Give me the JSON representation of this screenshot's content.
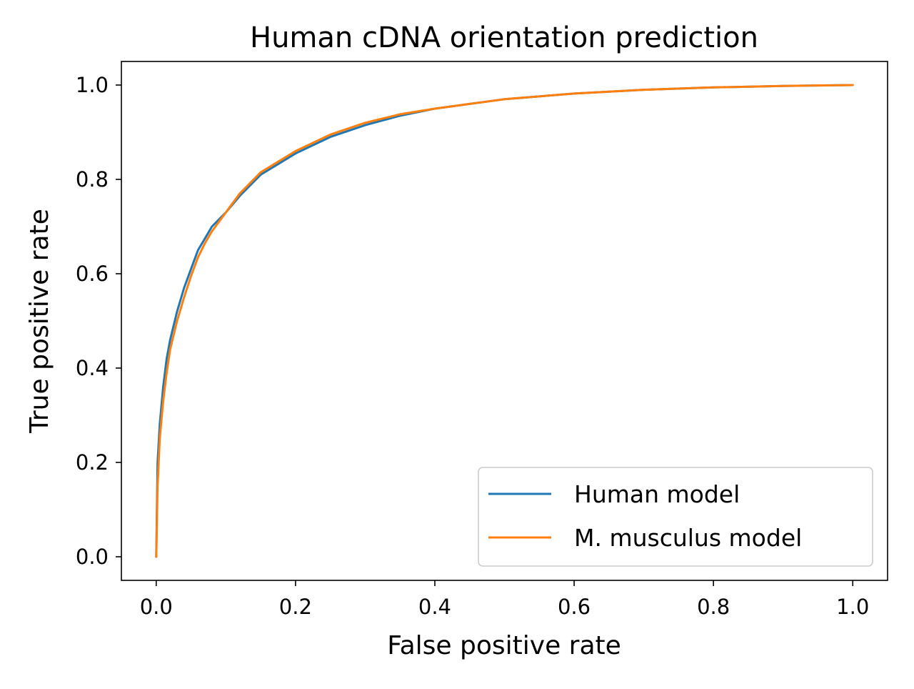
{
  "chart_data": {
    "type": "line",
    "title": "Human cDNA orientation prediction",
    "xlabel": "False positive rate",
    "ylabel": "True positive rate",
    "xlim": [
      -0.05,
      1.05
    ],
    "ylim": [
      -0.05,
      1.05
    ],
    "xticks": [
      "0.0",
      "0.2",
      "0.4",
      "0.6",
      "0.8",
      "1.0"
    ],
    "yticks": [
      "0.0",
      "0.2",
      "0.4",
      "0.6",
      "0.8",
      "1.0"
    ],
    "grid": false,
    "legend_position": "lower-right",
    "series": [
      {
        "name": "Human model",
        "color": "#1f77b4",
        "x": [
          0.0,
          0.002,
          0.005,
          0.01,
          0.015,
          0.02,
          0.03,
          0.04,
          0.05,
          0.06,
          0.07,
          0.08,
          0.1,
          0.12,
          0.15,
          0.2,
          0.25,
          0.3,
          0.35,
          0.4,
          0.45,
          0.5,
          0.6,
          0.7,
          0.8,
          0.9,
          1.0
        ],
        "y": [
          0.0,
          0.2,
          0.28,
          0.36,
          0.42,
          0.46,
          0.52,
          0.57,
          0.61,
          0.65,
          0.675,
          0.7,
          0.73,
          0.765,
          0.81,
          0.855,
          0.89,
          0.915,
          0.935,
          0.95,
          0.96,
          0.97,
          0.982,
          0.99,
          0.995,
          0.998,
          1.0
        ]
      },
      {
        "name": "M. musculus model",
        "color": "#ff7f0e",
        "x": [
          0.0,
          0.002,
          0.005,
          0.01,
          0.015,
          0.02,
          0.03,
          0.04,
          0.05,
          0.06,
          0.07,
          0.08,
          0.1,
          0.12,
          0.15,
          0.2,
          0.25,
          0.3,
          0.35,
          0.4,
          0.45,
          0.5,
          0.6,
          0.7,
          0.8,
          0.9,
          1.0
        ],
        "y": [
          0.0,
          0.15,
          0.25,
          0.33,
          0.39,
          0.44,
          0.5,
          0.55,
          0.595,
          0.635,
          0.665,
          0.69,
          0.73,
          0.77,
          0.815,
          0.86,
          0.895,
          0.92,
          0.938,
          0.95,
          0.96,
          0.97,
          0.982,
          0.99,
          0.995,
          0.998,
          1.0
        ]
      }
    ]
  }
}
